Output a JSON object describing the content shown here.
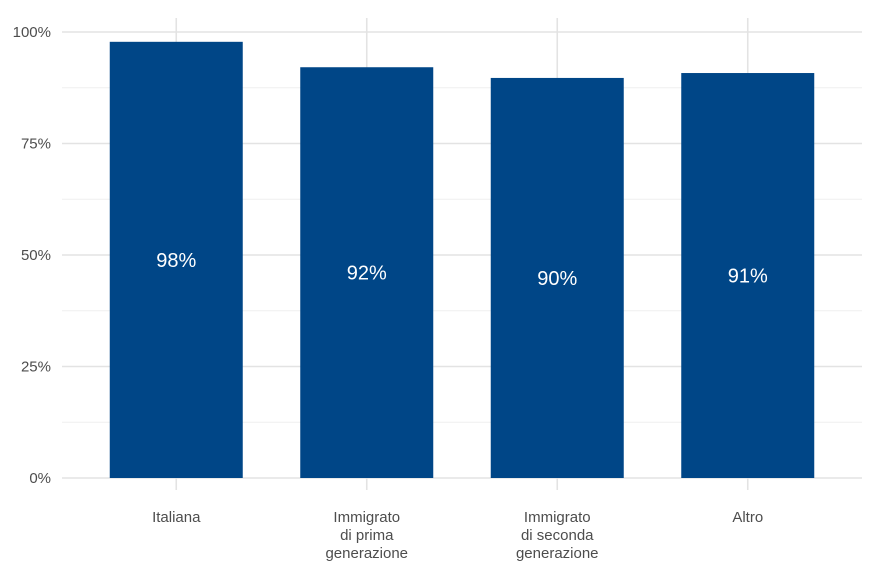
{
  "chart_data": {
    "type": "bar",
    "categories": [
      [
        "Italiana"
      ],
      [
        "Immigrato",
        "di prima",
        "generazione"
      ],
      [
        "Immigrato",
        "di seconda",
        "generazione"
      ],
      [
        "Altro"
      ]
    ],
    "values": [
      97.8,
      92.1,
      89.7,
      90.8
    ],
    "data_labels": [
      "98%",
      "92%",
      "90%",
      "91%"
    ],
    "ylim": [
      0,
      100
    ],
    "y_ticks": [
      0,
      25,
      50,
      75,
      100
    ],
    "y_tick_labels": [
      "0%",
      "25%",
      "50%",
      "75%",
      "100%"
    ],
    "grid": true,
    "bar_color": "#004687",
    "title": "",
    "xlabel": "",
    "ylabel": ""
  }
}
